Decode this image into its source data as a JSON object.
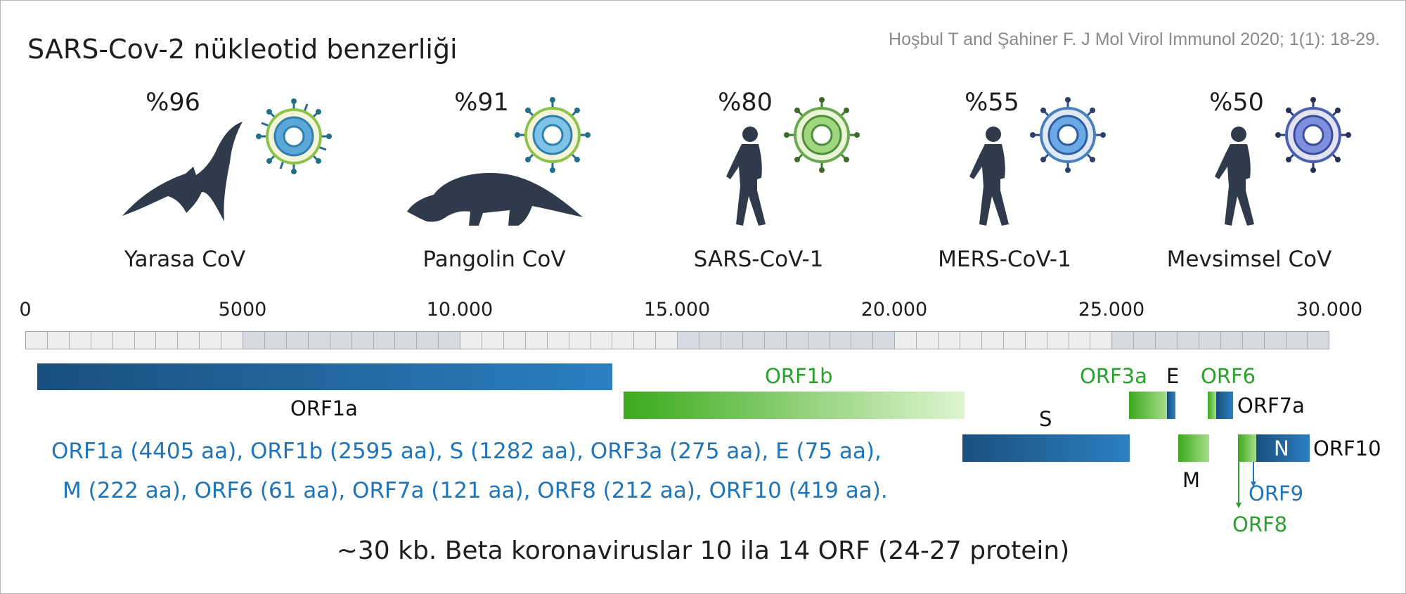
{
  "title": "SARS-Cov-2 nükleotid benzerliği",
  "citation": "Hoşbul T and Şahiner F. J Mol Virol Immunol 2020; 1(1): 18-29.",
  "organisms": [
    {
      "name": "Yarasa CoV",
      "similarity": "%96",
      "icon": "bat-icon",
      "virus_color": "#5aa7d8"
    },
    {
      "name": "Pangolin CoV",
      "similarity": "%91",
      "icon": "pangolin-icon",
      "virus_color": "#7fc3e8"
    },
    {
      "name": "SARS-CoV-1",
      "similarity": "%80",
      "icon": "walking-person-icon",
      "virus_color": "#9fd67f"
    },
    {
      "name": "MERS-CoV-1",
      "similarity": "%55",
      "icon": "walking-person-icon",
      "virus_color": "#6aa8e6"
    },
    {
      "name": "Mevsimsel CoV",
      "similarity": "%50",
      "icon": "walking-person-icon",
      "virus_color": "#7f8fe0"
    }
  ],
  "scale": {
    "ticks": [
      "0",
      "5000",
      "10.000",
      "15.000",
      "20.000",
      "25.000",
      "30.000"
    ],
    "range": [
      0,
      30000
    ]
  },
  "genes": {
    "orf1a": "ORF1a",
    "orf1b": "ORF1b",
    "s": "S",
    "orf3a": "ORF3a",
    "e": "E",
    "orf6": "ORF6",
    "orf7a": "ORF7a",
    "m": "M",
    "n": "N",
    "orf10": "ORF10",
    "orf9": "ORF9",
    "orf8": "ORF8"
  },
  "protein_lengths": {
    "line1": "ORF1a (4405 aa), ORF1b (2595 aa), S (1282 aa), ORF3a (275 aa), E (75 aa),",
    "line2": "M (222 aa), ORF6 (61 aa), ORF7a (121 aa), ORF8 (212 aa), ORF10 (419 aa)."
  },
  "footer": "~30 kb. Beta koronaviruslar 10 ila 14 ORF (24-27 protein)",
  "colors": {
    "blue_gene": "#1f75b8",
    "green_gene": "#2ca02c",
    "scale_light": "#eeeeee",
    "scale_dark": "#d6d9e2",
    "silhouette": "#2f3a4a"
  }
}
